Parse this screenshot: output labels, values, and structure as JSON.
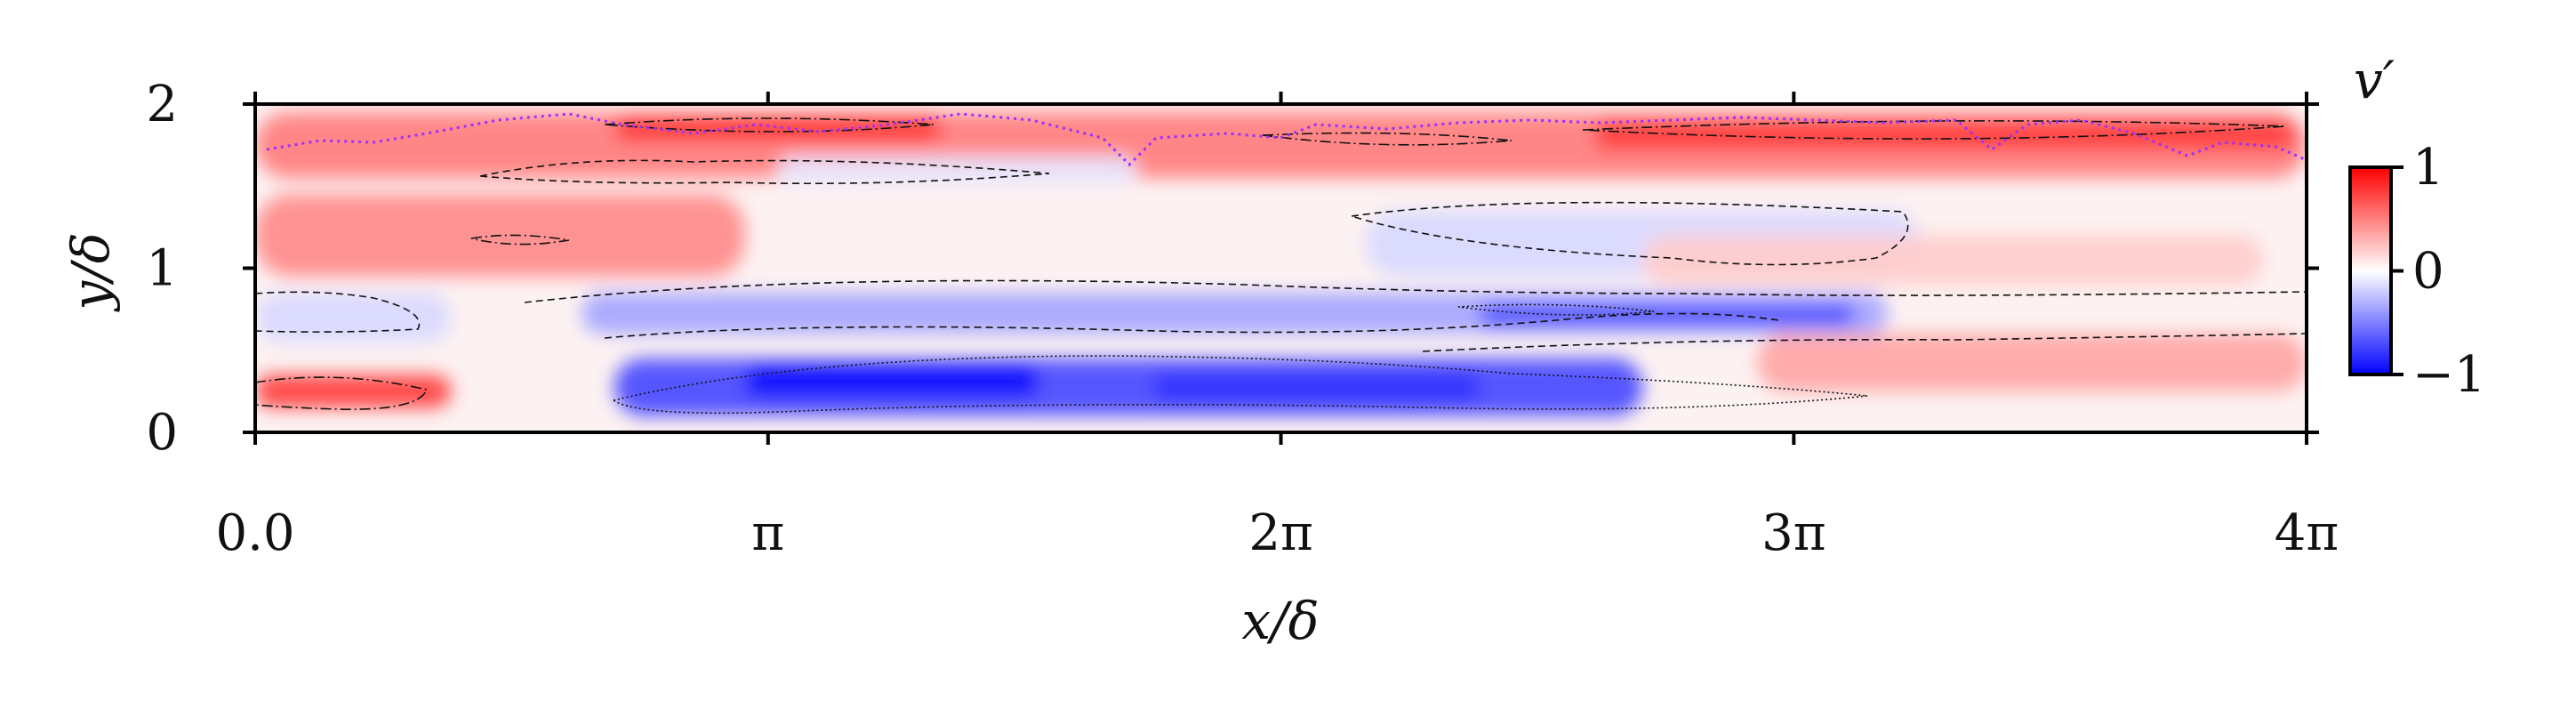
{
  "chart_data": {
    "type": "heatmap",
    "title": "",
    "xlabel": "x/δ",
    "ylabel": "y/δ",
    "xlim": [
      0,
      12.566
    ],
    "ylim": [
      0,
      2
    ],
    "x_ticks": [
      {
        "value": 0,
        "label": "0.0"
      },
      {
        "value": 3.1416,
        "label": "π"
      },
      {
        "value": 6.2832,
        "label": "2π"
      },
      {
        "value": 9.4248,
        "label": "3π"
      },
      {
        "value": 12.566,
        "label": "4π"
      }
    ],
    "y_ticks": [
      {
        "value": 0,
        "label": "0"
      },
      {
        "value": 1,
        "label": "1"
      },
      {
        "value": 2,
        "label": "2"
      }
    ],
    "colormap": {
      "name": "bwr",
      "low": "#0000ff",
      "mid": "#ffffff",
      "high": "#ff0000"
    },
    "colorbar": {
      "label": "v′",
      "range": [
        -1,
        1
      ],
      "ticks": [
        {
          "value": 1,
          "label": "1"
        },
        {
          "value": 0,
          "label": "0"
        },
        {
          "value": -1,
          "label": "−1"
        }
      ]
    },
    "field_regions": [
      {
        "x": [
          0.0,
          12.566
        ],
        "y": [
          1.55,
          1.95
        ],
        "value": 0.5
      },
      {
        "x": [
          2.2,
          4.2
        ],
        "y": [
          1.78,
          1.92
        ],
        "value": 0.8
      },
      {
        "x": [
          8.2,
          12.5
        ],
        "y": [
          1.72,
          1.9
        ],
        "value": 0.75
      },
      {
        "x": [
          3.2,
          5.4
        ],
        "y": [
          1.52,
          1.68
        ],
        "value": -0.1
      },
      {
        "x": [
          0.0,
          3.0
        ],
        "y": [
          0.95,
          1.45
        ],
        "value": 0.45
      },
      {
        "x": [
          6.8,
          10.2
        ],
        "y": [
          0.95,
          1.35
        ],
        "value": -0.15
      },
      {
        "x": [
          8.5,
          12.3
        ],
        "y": [
          0.9,
          1.2
        ],
        "value": 0.2
      },
      {
        "x": [
          0.0,
          1.2
        ],
        "y": [
          0.55,
          0.85
        ],
        "value": -0.15
      },
      {
        "x": [
          2.0,
          10.0
        ],
        "y": [
          0.6,
          0.85
        ],
        "value": -0.35
      },
      {
        "x": [
          7.5,
          9.8
        ],
        "y": [
          0.65,
          0.78
        ],
        "value": -0.7
      },
      {
        "x": [
          2.2,
          8.5
        ],
        "y": [
          0.1,
          0.45
        ],
        "value": -0.7
      },
      {
        "x": [
          3.0,
          4.8
        ],
        "y": [
          0.22,
          0.4
        ],
        "value": -0.95
      },
      {
        "x": [
          5.5,
          7.5
        ],
        "y": [
          0.2,
          0.35
        ],
        "value": -0.8
      },
      {
        "x": [
          0.0,
          1.2
        ],
        "y": [
          0.15,
          0.35
        ],
        "value": 0.75
      },
      {
        "x": [
          9.2,
          12.566
        ],
        "y": [
          0.25,
          0.6
        ],
        "value": 0.35
      }
    ],
    "overlay_line": {
      "color": "#9b30ff",
      "style": "dotted"
    }
  }
}
